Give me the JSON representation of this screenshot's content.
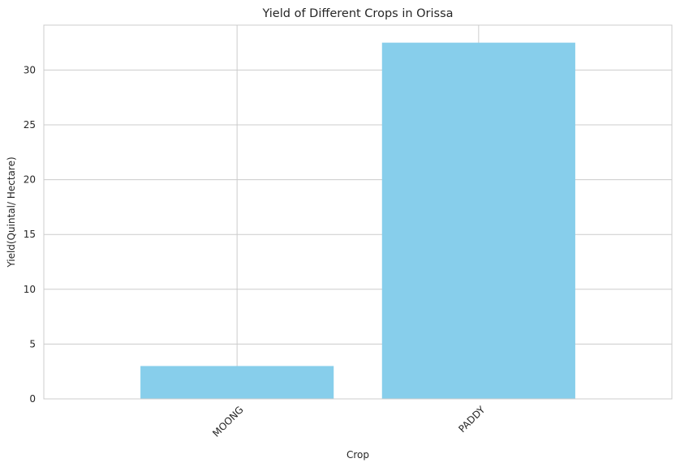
{
  "chart_data": {
    "type": "bar",
    "title": "Yield of Different Crops in Orissa",
    "xlabel": "Crop",
    "ylabel": "Yield(Quintal/ Hectare)",
    "categories": [
      "MOONG",
      "PADDY"
    ],
    "values": [
      3.0,
      32.5
    ],
    "ylim": [
      0,
      34.1
    ],
    "yticks": [
      0,
      5,
      10,
      15,
      20,
      25,
      30
    ],
    "grid": true,
    "bar_color": "#87CEEB",
    "grid_color": "#cccccc",
    "text_color": "#262626"
  }
}
